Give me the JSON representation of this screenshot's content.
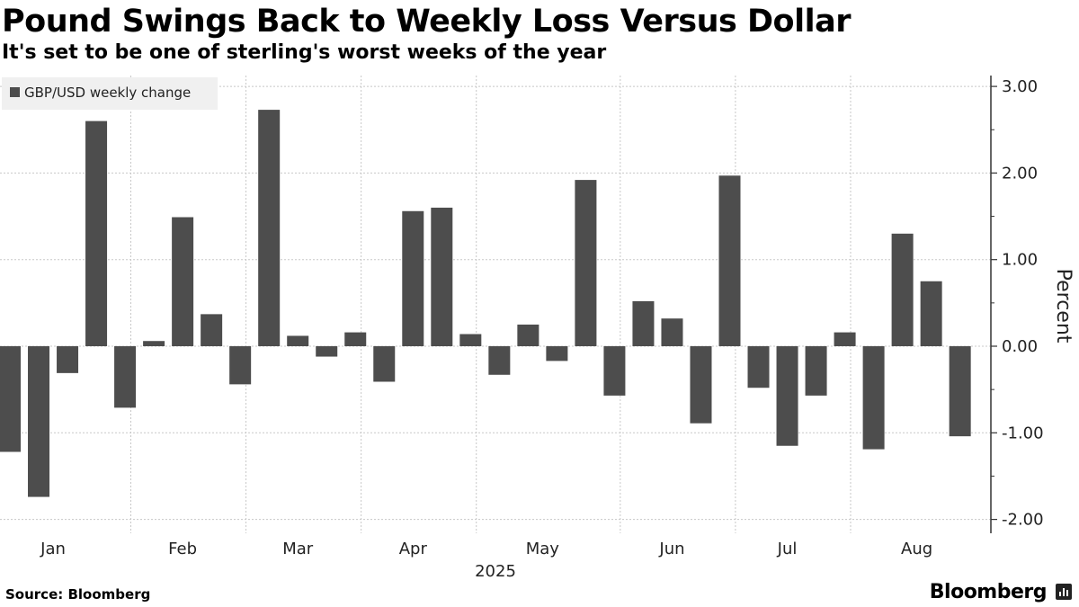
{
  "header": {
    "title": "Pound Swings Back to Weekly Loss Versus Dollar",
    "subtitle": "It's set to be one of sterling's worst weeks of the year"
  },
  "footer": {
    "source": "Source: Bloomberg",
    "brand": "Bloomberg"
  },
  "colors": {
    "bar": "#4d4d4d",
    "grid": "#c8c8c8",
    "axis": "#333333",
    "legend_bg": "#f0f0f0"
  },
  "chart_data": {
    "type": "bar",
    "title": "Pound Swings Back to Weekly Loss Versus Dollar",
    "subtitle": "It's set to be one of sterling's worst weeks of the year",
    "legend": [
      "GBP/USD weekly change"
    ],
    "legend_position": "top-left",
    "xlabel": "2025",
    "ylabel": "Percent",
    "ylim": [
      -2.0,
      3.0
    ],
    "yticks": [
      3.0,
      2.0,
      1.0,
      0.0,
      -1.0,
      -2.0
    ],
    "ytick_labels": [
      "3.00",
      "2.00",
      "1.00",
      "0.00",
      "-1.00",
      "-2.00"
    ],
    "grid": true,
    "month_labels": [
      "Jan",
      "Feb",
      "Mar",
      "Apr",
      "May",
      "Jun",
      "Jul",
      "Aug"
    ],
    "month_label_week": [
      1.5,
      6,
      10,
      14,
      18.5,
      23,
      27,
      31.5
    ],
    "month_boundary_week": [
      4.2,
      8.2,
      12.2,
      16.2,
      21.2,
      25.2,
      29.2
    ],
    "series": [
      {
        "name": "GBP/USD weekly change",
        "values": [
          -1.22,
          -1.74,
          -0.31,
          2.6,
          -0.71,
          0.06,
          1.49,
          0.37,
          -0.44,
          2.73,
          0.12,
          -0.12,
          0.16,
          -0.41,
          1.56,
          1.6,
          0.14,
          -0.33,
          0.25,
          -0.17,
          1.92,
          -0.57,
          0.52,
          0.32,
          -0.89,
          1.97,
          -0.48,
          -1.15,
          -0.57,
          0.16,
          -1.19,
          1.3,
          0.75,
          -1.04
        ]
      }
    ]
  }
}
